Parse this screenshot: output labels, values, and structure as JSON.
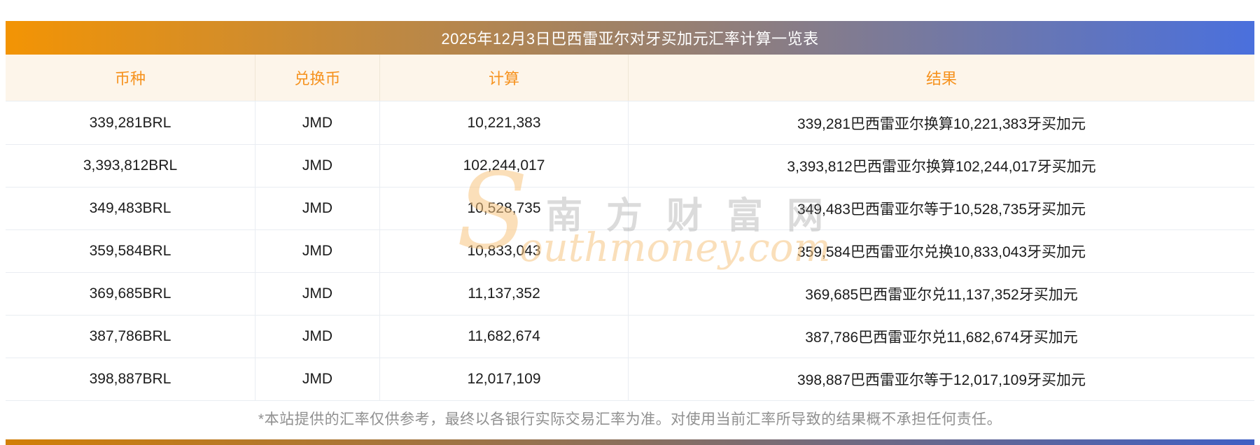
{
  "header": {
    "title": "2025年12月3日巴西雷亚尔对牙买加元汇率计算一览表",
    "gradient_left_color": "#f39404",
    "gradient_right_color": "#4a70dd",
    "text_color": "#ffffff"
  },
  "table": {
    "columns": [
      "币种",
      "兑换币",
      "计算",
      "结果"
    ],
    "header_text_color": "#f6921e",
    "header_bg_color": "#fdf5ea",
    "rows": [
      {
        "currency": "339,281BRL",
        "exchange": "JMD",
        "calc": "10,221,383",
        "result": "339,281巴西雷亚尔换算10,221,383牙买加元"
      },
      {
        "currency": "3,393,812BRL",
        "exchange": "JMD",
        "calc": "102,244,017",
        "result": "3,393,812巴西雷亚尔换算102,244,017牙买加元"
      },
      {
        "currency": "349,483BRL",
        "exchange": "JMD",
        "calc": "10,528,735",
        "result": "349,483巴西雷亚尔等于10,528,735牙买加元"
      },
      {
        "currency": "359,584BRL",
        "exchange": "JMD",
        "calc": "10,833,043",
        "result": "359,584巴西雷亚尔兑换10,833,043牙买加元"
      },
      {
        "currency": "369,685BRL",
        "exchange": "JMD",
        "calc": "11,137,352",
        "result": "369,685巴西雷亚尔兑11,137,352牙买加元"
      },
      {
        "currency": "387,786BRL",
        "exchange": "JMD",
        "calc": "11,682,674",
        "result": "387,786巴西雷亚尔兑11,682,674牙买加元"
      },
      {
        "currency": "398,887BRL",
        "exchange": "JMD",
        "calc": "12,017,109",
        "result": "398,887巴西雷亚尔等于12,017,109牙买加元"
      }
    ]
  },
  "watermark": {
    "s_glyph": "S",
    "cn_text": "南方财富网",
    "en_text": "outhmoney.com"
  },
  "footer": {
    "disclaimer": "*本站提供的汇率仅供参考，最终以各银行实际交易汇率为准。对使用当前汇率所导致的结果概不承担任何责任。"
  }
}
